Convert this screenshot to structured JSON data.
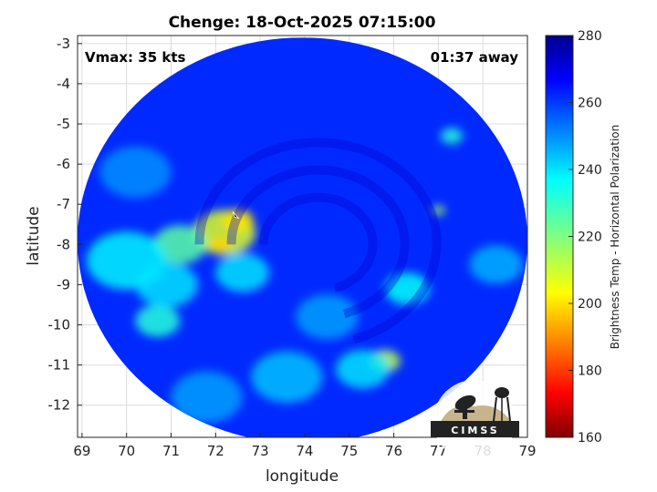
{
  "chart_data": {
    "type": "heatmap",
    "title": "Chenge: 18-Oct-2025 07:15:00",
    "xlabel": "longitude",
    "ylabel": "latitude",
    "xlim": [
      68.9,
      79
    ],
    "ylim": [
      -12.8,
      -2.8
    ],
    "x_ticks": [
      69,
      70,
      71,
      72,
      73,
      74,
      75,
      76,
      77,
      78,
      79
    ],
    "y_ticks": [
      -3,
      -4,
      -5,
      -6,
      -7,
      -8,
      -9,
      -10,
      -11,
      -12
    ],
    "grid": true,
    "colorbar": {
      "label": "Brightness Temp - Horizontal Polarization",
      "range": [
        160,
        280
      ],
      "ticks": [
        280,
        260,
        240,
        220,
        200,
        180,
        160
      ],
      "colormap": "jet"
    },
    "annotations": {
      "vmax": "Vmax: 35 kts",
      "time_away": "01:37 away"
    },
    "swath": {
      "center_lon": 73.95,
      "center_lat": -7.9,
      "radius_deg": 5.05
    },
    "storm_center": {
      "lon": 72.45,
      "lat": -7.3
    },
    "background_temp": 262,
    "features": [
      {
        "lon": 72.2,
        "lat": -7.7,
        "temp": 208,
        "spread": 0.7
      },
      {
        "lon": 72.5,
        "lat": -7.4,
        "temp": 200,
        "spread": 0.35
      },
      {
        "lon": 72.1,
        "lat": -8.0,
        "temp": 198,
        "spread": 0.25
      },
      {
        "lon": 71.2,
        "lat": -8.0,
        "temp": 225,
        "spread": 0.6
      },
      {
        "lon": 70.0,
        "lat": -8.4,
        "temp": 238,
        "spread": 0.9
      },
      {
        "lon": 70.7,
        "lat": -9.9,
        "temp": 232,
        "spread": 0.5
      },
      {
        "lon": 70.9,
        "lat": -9.0,
        "temp": 240,
        "spread": 0.7
      },
      {
        "lon": 72.6,
        "lat": -8.7,
        "temp": 240,
        "spread": 0.6
      },
      {
        "lon": 75.8,
        "lat": -10.9,
        "temp": 212,
        "spread": 0.35
      },
      {
        "lon": 75.3,
        "lat": -11.1,
        "temp": 240,
        "spread": 0.6
      },
      {
        "lon": 76.3,
        "lat": -9.1,
        "temp": 236,
        "spread": 0.5
      },
      {
        "lon": 77.0,
        "lat": -7.15,
        "temp": 215,
        "spread": 0.15
      },
      {
        "lon": 77.3,
        "lat": -5.3,
        "temp": 232,
        "spread": 0.25
      },
      {
        "lon": 78.3,
        "lat": -8.5,
        "temp": 246,
        "spread": 0.6
      },
      {
        "lon": 73.6,
        "lat": -11.3,
        "temp": 244,
        "spread": 0.8
      },
      {
        "lon": 71.8,
        "lat": -11.8,
        "temp": 248,
        "spread": 0.8
      },
      {
        "lon": 70.2,
        "lat": -6.2,
        "temp": 250,
        "spread": 0.8
      },
      {
        "lon": 74.5,
        "lat": -9.8,
        "temp": 248,
        "spread": 0.7
      }
    ]
  },
  "logo": {
    "text": "CIMSS"
  }
}
